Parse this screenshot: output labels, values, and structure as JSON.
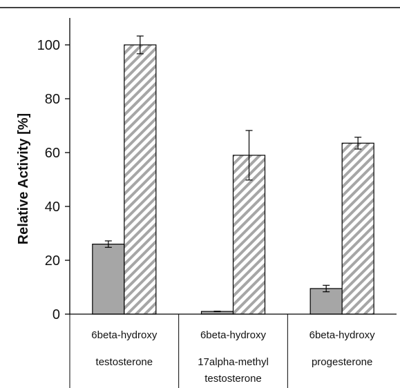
{
  "chart_data": {
    "type": "bar",
    "ylabel": "Relative Activity [%]",
    "ylim": [
      0,
      100
    ],
    "yticks": [
      "0",
      "20",
      "40",
      "60",
      "80",
      "100"
    ],
    "categories": [
      [
        "6beta-hydroxy",
        "testosterone"
      ],
      [
        "6beta-hydroxy",
        "17alpha-methyl",
        "testosterone"
      ],
      [
        "6beta-hydroxy",
        "progesterone"
      ]
    ],
    "series": [
      {
        "fill": "solid",
        "color": "#a6a6a6",
        "values": [
          26,
          1,
          9.5
        ],
        "errors": [
          1.2,
          0.1,
          1.2
        ]
      },
      {
        "fill": "hatched",
        "color": "#a6a6a6",
        "values": [
          100,
          59,
          63.5
        ],
        "errors": [
          3.3,
          9.2,
          2.2
        ]
      }
    ],
    "grid": false,
    "legend": "none"
  }
}
